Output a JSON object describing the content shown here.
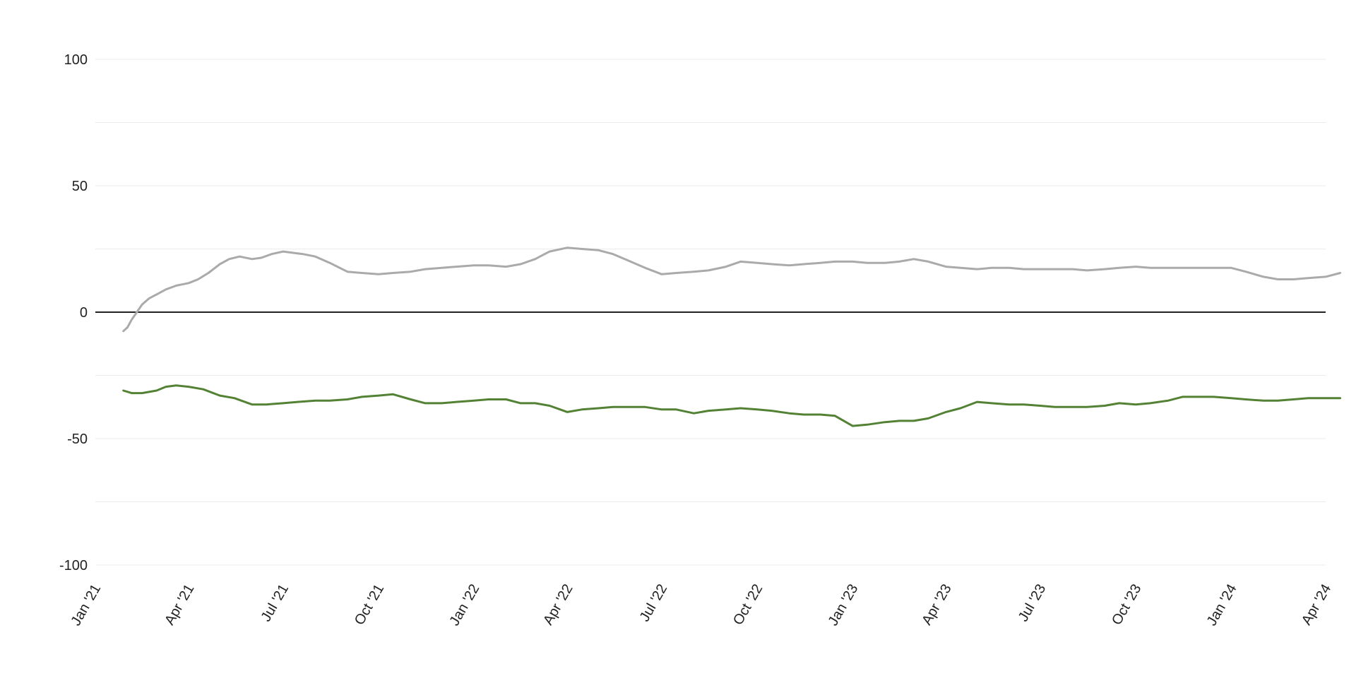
{
  "chart_data": {
    "type": "line",
    "title": "",
    "xlabel": "",
    "ylabel": "",
    "ylim": [
      -100,
      100
    ],
    "xlim": [
      "2021-01-01",
      "2024-04-01"
    ],
    "grid": true,
    "legend": "none",
    "y_ticks": [
      100,
      75,
      50,
      25,
      0,
      -25,
      -50,
      -75,
      -100
    ],
    "y_tick_labels": [
      "100",
      "",
      "50",
      "",
      "0",
      "",
      "-50",
      "",
      "-100"
    ],
    "x_ticks": [
      "2021-01-01",
      "2021-04-01",
      "2021-07-01",
      "2021-10-01",
      "2022-01-01",
      "2022-04-01",
      "2022-07-01",
      "2022-10-01",
      "2023-01-01",
      "2023-04-01",
      "2023-07-01",
      "2023-10-01",
      "2024-01-01",
      "2024-04-01"
    ],
    "x_tick_labels": [
      "Jan '21",
      "Apr '21",
      "Jul '21",
      "Oct '21",
      "Jan '22",
      "Apr '22",
      "Jul '22",
      "Oct '22",
      "Jan '23",
      "Apr '23",
      "Jul '23",
      "Oct '23",
      "Jan '24",
      "Apr '24"
    ],
    "series": [
      {
        "color": "#aaaaaa",
        "x": [
          "2021-01-28",
          "2021-02-01",
          "2021-02-05",
          "2021-02-10",
          "2021-02-15",
          "2021-02-22",
          "2021-03-01",
          "2021-03-10",
          "2021-03-20",
          "2021-04-01",
          "2021-04-10",
          "2021-04-20",
          "2021-05-01",
          "2021-05-10",
          "2021-05-20",
          "2021-06-01",
          "2021-06-10",
          "2021-06-20",
          "2021-07-01",
          "2021-07-10",
          "2021-07-20",
          "2021-08-01",
          "2021-08-15",
          "2021-09-01",
          "2021-09-15",
          "2021-10-01",
          "2021-10-15",
          "2021-11-01",
          "2021-11-15",
          "2021-12-01",
          "2021-12-15",
          "2022-01-01",
          "2022-01-15",
          "2022-02-01",
          "2022-02-15",
          "2022-03-01",
          "2022-03-15",
          "2022-04-01",
          "2022-04-15",
          "2022-05-01",
          "2022-05-15",
          "2022-06-01",
          "2022-06-15",
          "2022-07-01",
          "2022-07-15",
          "2022-08-01",
          "2022-08-15",
          "2022-09-01",
          "2022-09-15",
          "2022-10-01",
          "2022-10-15",
          "2022-11-01",
          "2022-11-15",
          "2022-12-01",
          "2022-12-15",
          "2023-01-01",
          "2023-01-15",
          "2023-02-01",
          "2023-02-15",
          "2023-03-01",
          "2023-03-15",
          "2023-04-01",
          "2023-04-15",
          "2023-05-01",
          "2023-05-15",
          "2023-06-01",
          "2023-06-15",
          "2023-07-01",
          "2023-07-15",
          "2023-08-01",
          "2023-08-15",
          "2023-09-01",
          "2023-09-15",
          "2023-10-01",
          "2023-10-15",
          "2023-11-01",
          "2023-11-15",
          "2023-12-01",
          "2023-12-15",
          "2024-01-01",
          "2024-01-15",
          "2024-02-01",
          "2024-02-15",
          "2024-03-01",
          "2024-03-15",
          "2024-04-01",
          "2024-04-15"
        ],
        "values": [
          -7.5,
          -6,
          -3,
          0,
          3,
          5.5,
          7,
          9,
          10.5,
          11.5,
          13,
          15.5,
          19,
          21,
          22,
          21,
          21.5,
          23,
          24,
          23.5,
          23,
          22,
          19.5,
          16,
          15.5,
          15,
          15.5,
          16,
          17,
          17.5,
          18,
          18.5,
          18.5,
          18,
          19,
          21,
          24,
          25.5,
          25,
          24.5,
          23,
          20,
          17.5,
          15,
          15.5,
          16,
          16.5,
          18,
          20,
          19.5,
          19,
          18.5,
          19,
          19.5,
          20,
          20,
          19.5,
          19.5,
          20,
          21,
          20,
          18,
          17.5,
          17,
          17.5,
          17.5,
          17,
          17,
          17,
          17,
          16.5,
          17,
          17.5,
          18,
          17.5,
          17.5,
          17.5,
          17.5,
          17.5,
          17.5,
          16,
          14,
          13,
          13,
          13.5,
          14,
          15.5
        ]
      },
      {
        "color": "#548235",
        "x": [
          "2021-01-28",
          "2021-02-05",
          "2021-02-15",
          "2021-03-01",
          "2021-03-10",
          "2021-03-20",
          "2021-04-01",
          "2021-04-15",
          "2021-05-01",
          "2021-05-15",
          "2021-06-01",
          "2021-06-15",
          "2021-07-01",
          "2021-07-15",
          "2021-08-01",
          "2021-08-15",
          "2021-09-01",
          "2021-09-15",
          "2021-10-01",
          "2021-10-15",
          "2021-11-01",
          "2021-11-15",
          "2021-12-01",
          "2021-12-15",
          "2022-01-01",
          "2022-01-15",
          "2022-02-01",
          "2022-02-15",
          "2022-03-01",
          "2022-03-15",
          "2022-04-01",
          "2022-04-15",
          "2022-05-01",
          "2022-05-15",
          "2022-06-01",
          "2022-06-15",
          "2022-07-01",
          "2022-07-15",
          "2022-08-01",
          "2022-08-15",
          "2022-09-01",
          "2022-09-15",
          "2022-10-01",
          "2022-10-15",
          "2022-11-01",
          "2022-11-15",
          "2022-12-01",
          "2022-12-15",
          "2023-01-01",
          "2023-01-15",
          "2023-02-01",
          "2023-02-15",
          "2023-03-01",
          "2023-03-15",
          "2023-04-01",
          "2023-04-15",
          "2023-05-01",
          "2023-05-15",
          "2023-06-01",
          "2023-06-15",
          "2023-07-01",
          "2023-07-15",
          "2023-08-01",
          "2023-08-15",
          "2023-09-01",
          "2023-09-15",
          "2023-10-01",
          "2023-10-15",
          "2023-11-01",
          "2023-11-15",
          "2023-12-01",
          "2023-12-15",
          "2024-01-01",
          "2024-01-15",
          "2024-02-01",
          "2024-02-15",
          "2024-03-01",
          "2024-03-15",
          "2024-04-01",
          "2024-04-15"
        ],
        "values": [
          -31,
          -32,
          -32,
          -31,
          -29.5,
          -29,
          -29.5,
          -30.5,
          -33,
          -34,
          -36.5,
          -36.5,
          -36,
          -35.5,
          -35,
          -35,
          -34.5,
          -33.5,
          -33,
          -32.5,
          -34.5,
          -36,
          -36,
          -35.5,
          -35,
          -34.5,
          -34.5,
          -36,
          -36,
          -37,
          -39.5,
          -38.5,
          -38,
          -37.5,
          -37.5,
          -37.5,
          -38.5,
          -38.5,
          -40,
          -39,
          -38.5,
          -38,
          -38.5,
          -39,
          -40,
          -40.5,
          -40.5,
          -41,
          -45,
          -44.5,
          -43.5,
          -43,
          -43,
          -42,
          -39.5,
          -38,
          -35.5,
          -36,
          -36.5,
          -36.5,
          -37,
          -37.5,
          -37.5,
          -37.5,
          -37,
          -36,
          -36.5,
          -36,
          -35,
          -33.5,
          -33.5,
          -33.5,
          -34,
          -34.5,
          -35,
          -35,
          -34.5,
          -34,
          -34,
          -34
        ]
      }
    ]
  }
}
